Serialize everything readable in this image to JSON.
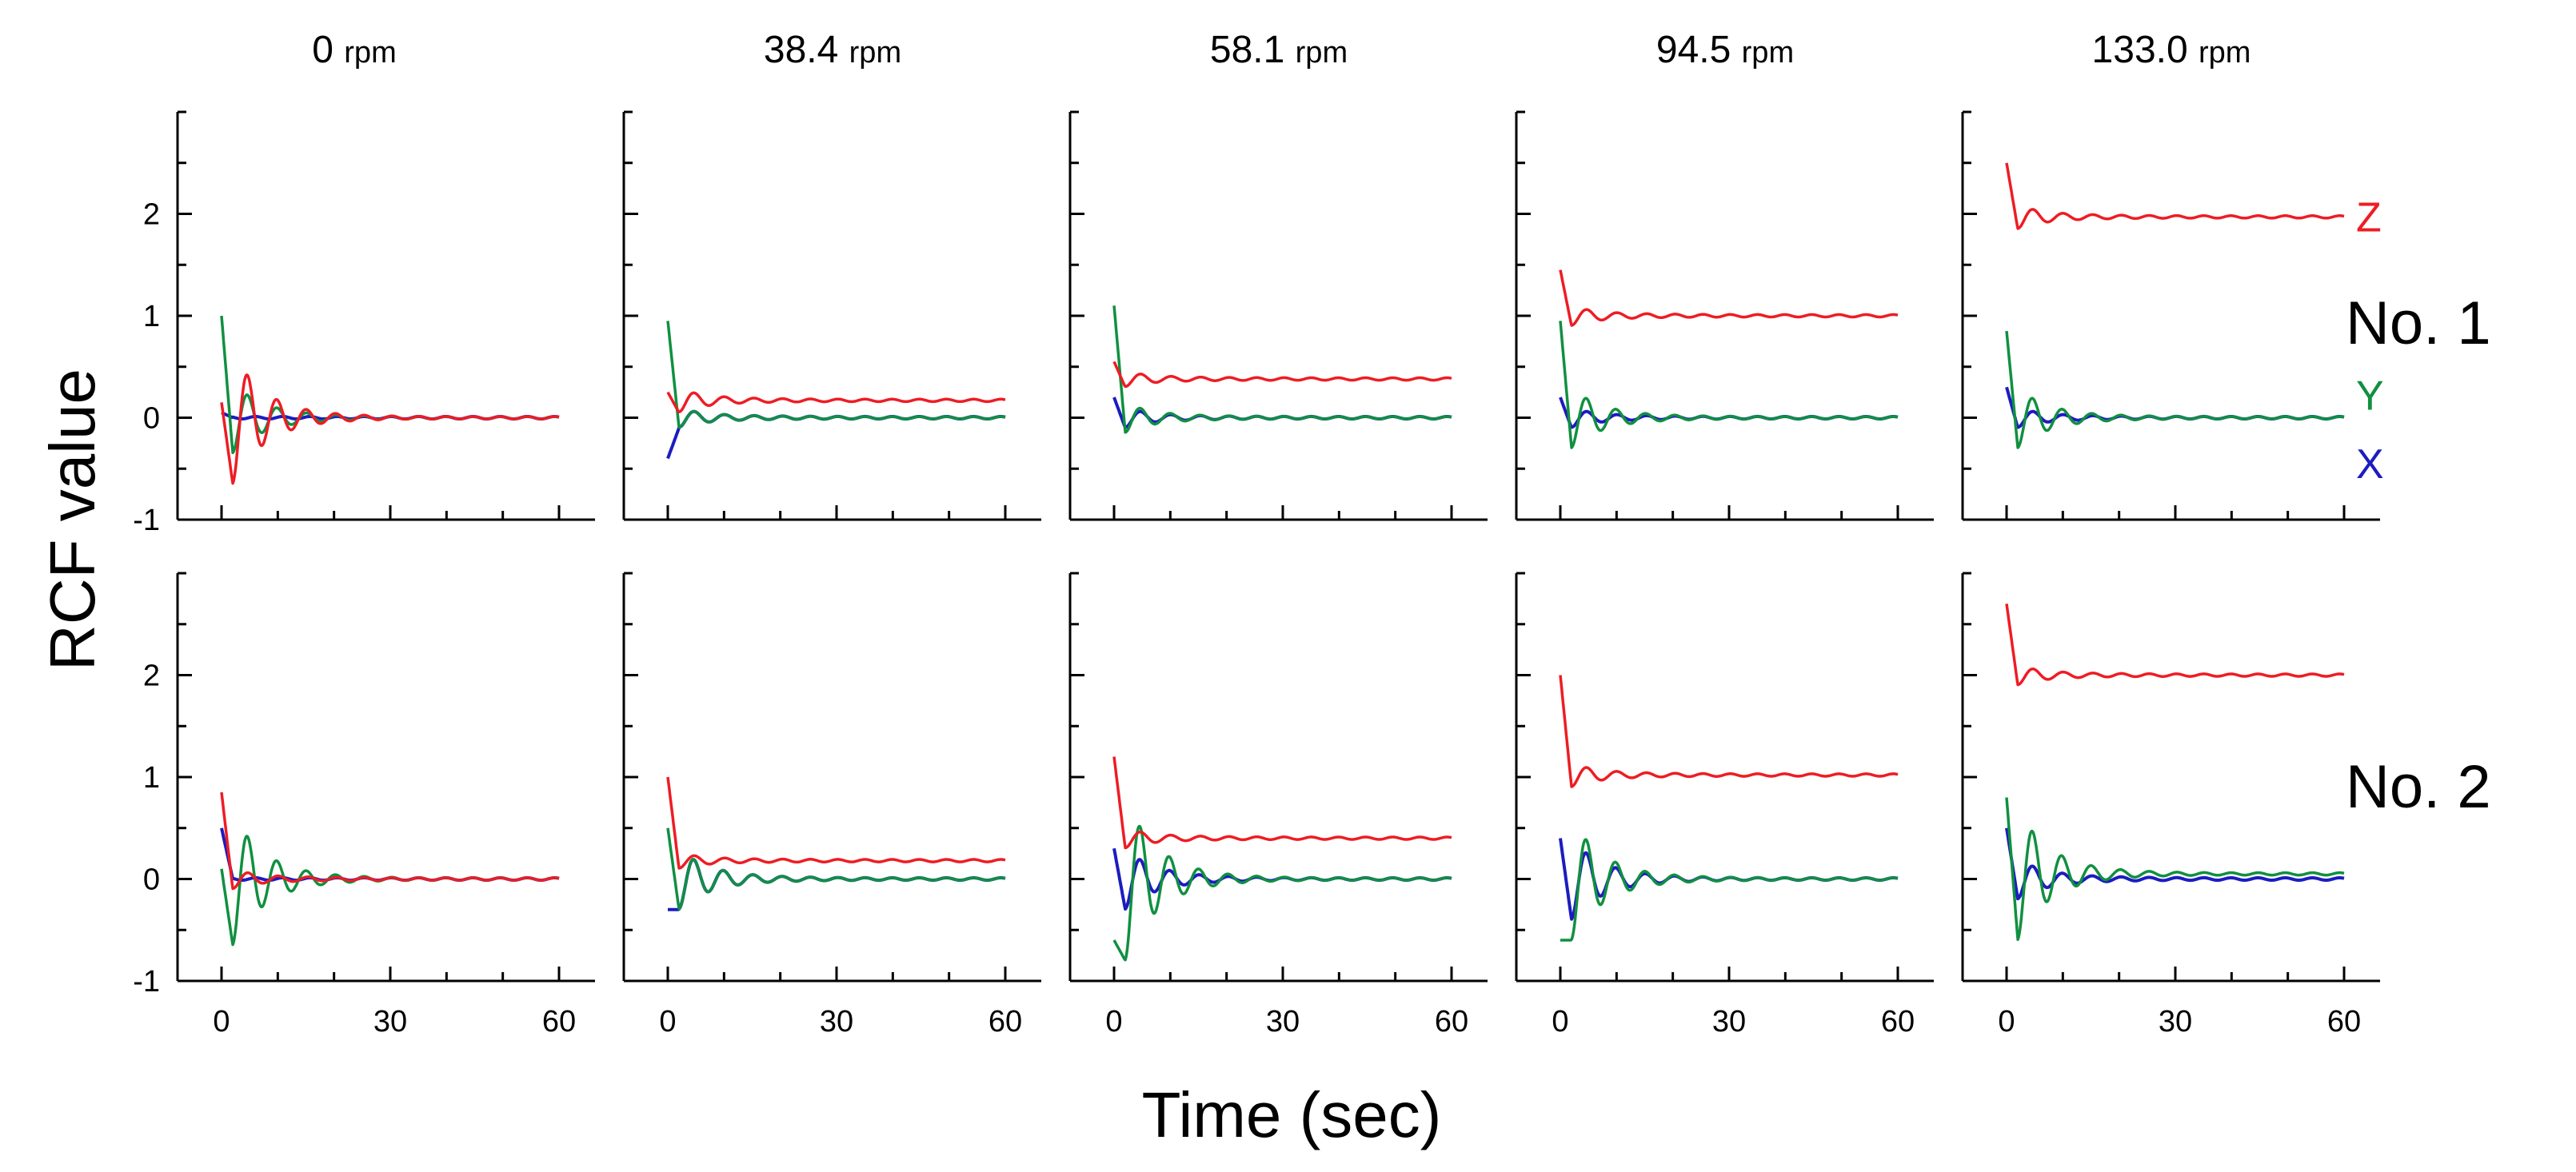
{
  "labels": {
    "ylabel": "RCF value",
    "xlabel": "Time (sec)",
    "rpm_unit": "rpm"
  },
  "colors": {
    "Z": "#ee1c24",
    "Y": "#109040",
    "X": "#1c1cc0"
  },
  "chart_data": {
    "type": "line",
    "title": "",
    "xlabel": "Time (sec)",
    "ylabel": "RCF value",
    "xlim": [
      0,
      60
    ],
    "ylim": [
      -1,
      3
    ],
    "x_ticks": [
      0,
      30,
      60
    ],
    "y_ticks": [
      -1,
      0,
      1,
      2
    ],
    "grid": false,
    "columns": [
      "0",
      "38.4",
      "58.1",
      "94.5",
      "133.0"
    ],
    "rows": [
      "No. 1",
      "No. 2"
    ],
    "series_labels": [
      {
        "name": "Z",
        "color": "#ee1c24"
      },
      {
        "name": "Y",
        "color": "#109040"
      },
      {
        "name": "X",
        "color": "#1c1cc0"
      }
    ],
    "panels": [
      {
        "row": "No. 1",
        "rpm": "0",
        "steady": {
          "Z": 0.0,
          "Y": 0.0,
          "X": 0.0
        },
        "initial": {
          "Z": 0.15,
          "Y": 1.0,
          "X": 0.05
        },
        "extreme": {
          "Z": -0.65,
          "Y": -0.35,
          "X": 0.0
        }
      },
      {
        "row": "No. 1",
        "rpm": "38.4",
        "steady": {
          "Z": 0.17,
          "Y": 0.0,
          "X": 0.0
        },
        "initial": {
          "Z": 0.25,
          "Y": 0.95,
          "X": -0.4
        },
        "extreme": {
          "Z": 0.05,
          "Y": -0.1,
          "X": -0.1
        }
      },
      {
        "row": "No. 1",
        "rpm": "58.1",
        "steady": {
          "Z": 0.38,
          "Y": 0.0,
          "X": 0.0
        },
        "initial": {
          "Z": 0.55,
          "Y": 1.1,
          "X": 0.2
        },
        "extreme": {
          "Z": 0.3,
          "Y": -0.15,
          "X": -0.1
        }
      },
      {
        "row": "No. 1",
        "rpm": "94.5",
        "steady": {
          "Z": 1.0,
          "Y": 0.0,
          "X": 0.0
        },
        "initial": {
          "Z": 1.45,
          "Y": 0.95,
          "X": 0.2
        },
        "extreme": {
          "Z": 0.9,
          "Y": -0.3,
          "X": -0.1
        }
      },
      {
        "row": "No. 1",
        "rpm": "133.0",
        "steady": {
          "Z": 1.97,
          "Y": 0.0,
          "X": 0.0
        },
        "initial": {
          "Z": 2.5,
          "Y": 0.85,
          "X": 0.3
        },
        "extreme": {
          "Z": 1.85,
          "Y": -0.3,
          "X": -0.1
        }
      },
      {
        "row": "No. 2",
        "rpm": "0",
        "steady": {
          "Z": 0.0,
          "Y": 0.0,
          "X": 0.0
        },
        "initial": {
          "Z": 0.85,
          "Y": 0.1,
          "X": 0.5
        },
        "extreme": {
          "Z": -0.1,
          "Y": -0.65,
          "X": 0.0
        }
      },
      {
        "row": "No. 2",
        "rpm": "38.4",
        "steady": {
          "Z": 0.18,
          "Y": 0.0,
          "X": 0.0
        },
        "initial": {
          "Z": 1.0,
          "Y": 0.5,
          "X": -0.3
        },
        "extreme": {
          "Z": 0.1,
          "Y": -0.3,
          "X": -0.3
        }
      },
      {
        "row": "No. 2",
        "rpm": "58.1",
        "steady": {
          "Z": 0.4,
          "Y": 0.0,
          "X": 0.0
        },
        "initial": {
          "Z": 1.2,
          "Y": -0.6,
          "X": 0.3
        },
        "extreme": {
          "Z": 0.3,
          "Y": -0.8,
          "X": -0.3
        }
      },
      {
        "row": "No. 2",
        "rpm": "94.5",
        "steady": {
          "Z": 1.02,
          "Y": 0.0,
          "X": 0.0
        },
        "initial": {
          "Z": 2.0,
          "Y": -0.6,
          "X": 0.4
        },
        "extreme": {
          "Z": 0.9,
          "Y": -0.6,
          "X": -0.4
        }
      },
      {
        "row": "No. 2",
        "rpm": "133.0",
        "steady": {
          "Z": 2.0,
          "Y": 0.05,
          "X": 0.0
        },
        "initial": {
          "Z": 2.7,
          "Y": 0.8,
          "X": 0.5
        },
        "extreme": {
          "Z": 1.9,
          "Y": -0.6,
          "X": -0.2
        }
      }
    ]
  }
}
